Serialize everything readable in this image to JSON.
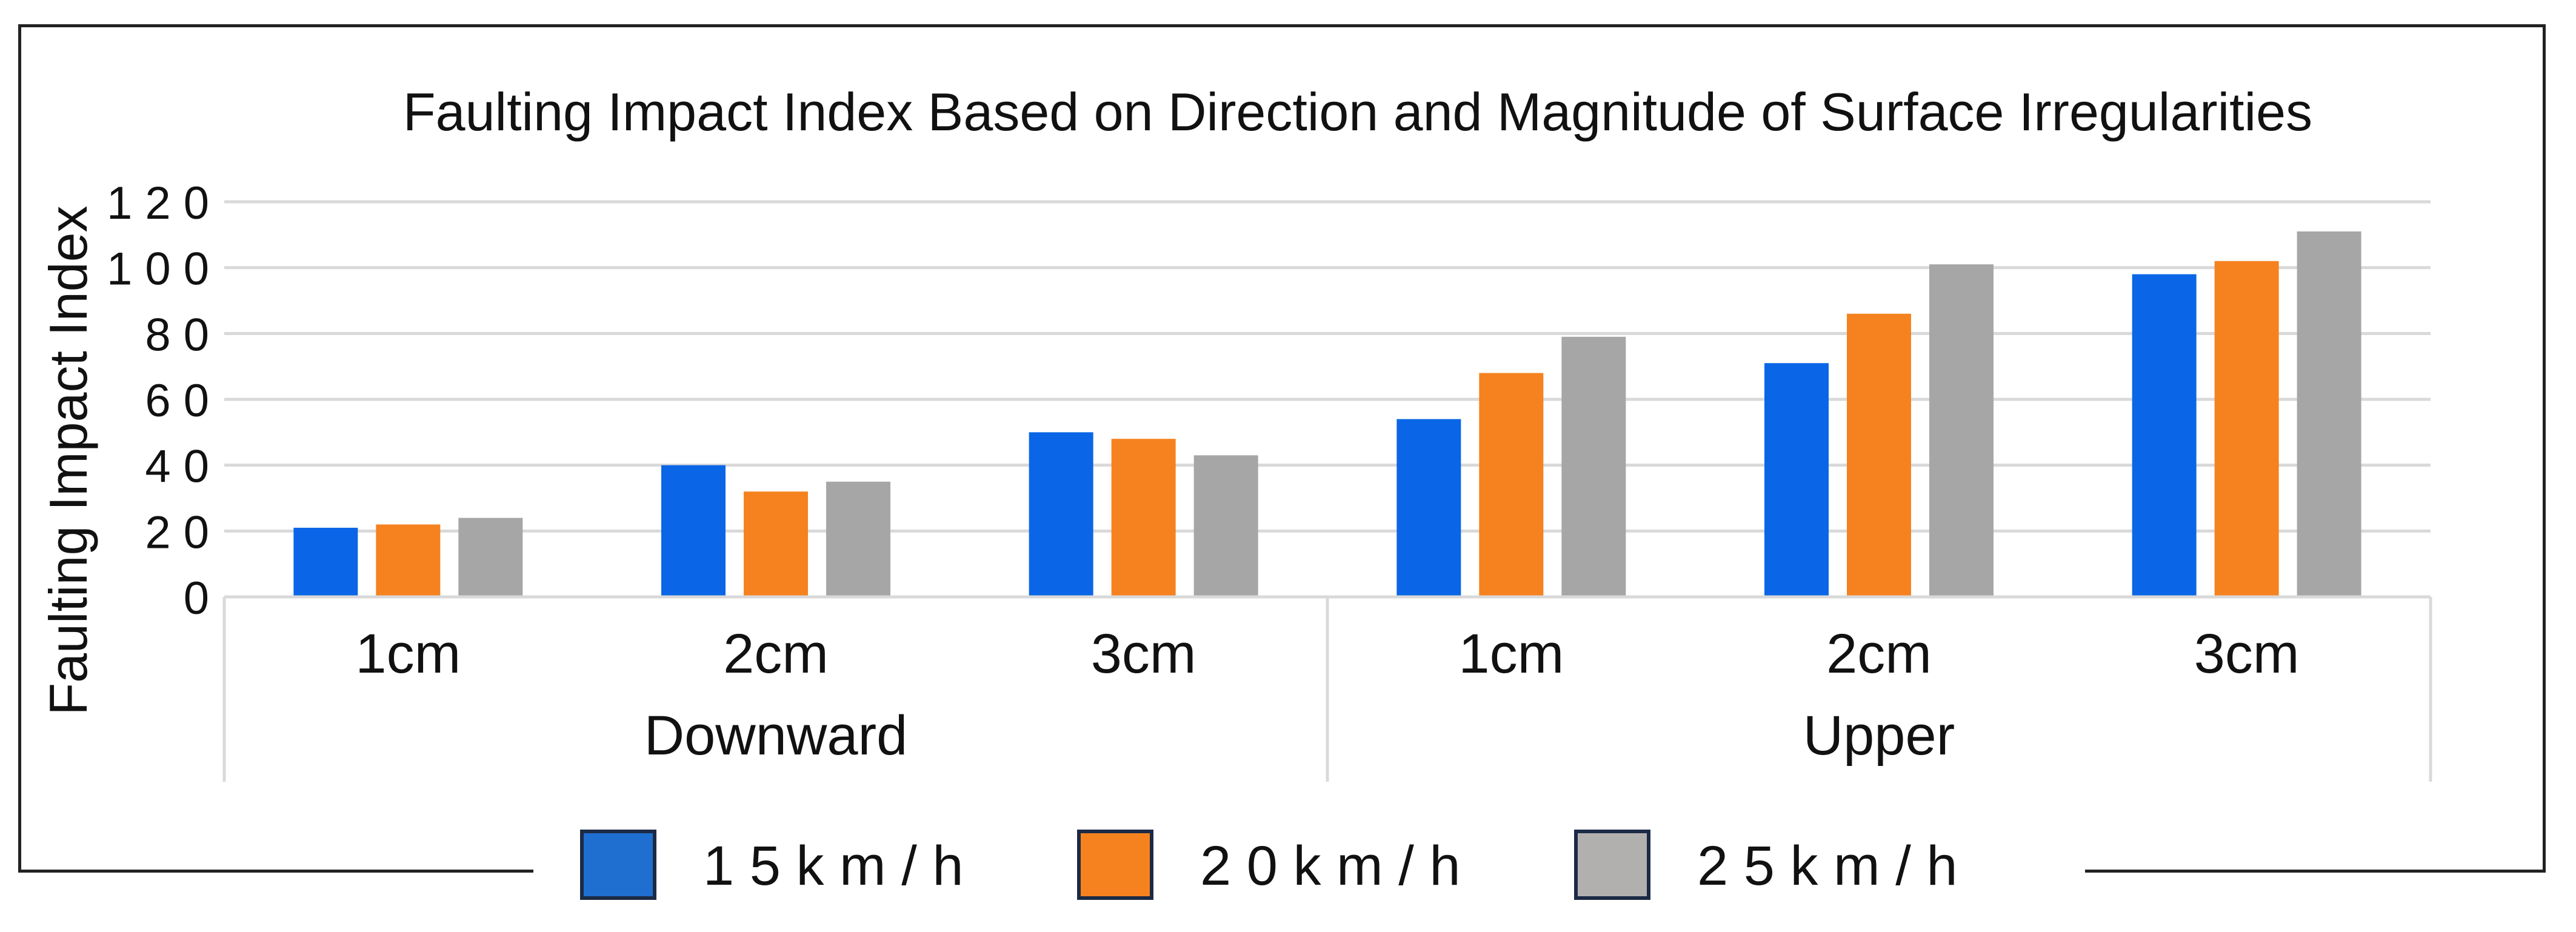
{
  "chart_data": {
    "type": "bar",
    "title": "Faulting Impact Index Based on Direction and Magnitude of Surface Irregularities",
    "ylabel": "Faulting Impact Index",
    "xlabel": "",
    "ylim": [
      0,
      120
    ],
    "yticks": [
      "0",
      "2 0",
      "4 0",
      "6 0",
      "8 0",
      "1 0 0",
      "1 2 0"
    ],
    "ytick_values": [
      0,
      20,
      40,
      60,
      80,
      100,
      120
    ],
    "grid": true,
    "legend_position": "bottom",
    "groups": [
      {
        "label": "Downward",
        "categories": [
          "1cm",
          "2cm",
          "3cm"
        ]
      },
      {
        "label": "Upper",
        "categories": [
          "1cm",
          "2cm",
          "3cm"
        ]
      }
    ],
    "categories": [
      "1cm",
      "2cm",
      "3cm",
      "1cm",
      "2cm",
      "3cm"
    ],
    "series": [
      {
        "name": "1 5 k m / h",
        "color": "#0a66e6",
        "legend_color": "#1f6fd0",
        "values": [
          21,
          40,
          50,
          54,
          71,
          98
        ]
      },
      {
        "name": "2 0 k m / h",
        "color": "#f5821f",
        "legend_color": "#f5821f",
        "values": [
          22,
          32,
          48,
          68,
          86,
          102
        ]
      },
      {
        "name": "2 5 k m / h",
        "color": "#a6a6a6",
        "legend_color": "#b2b0ae",
        "values": [
          24,
          35,
          43,
          79,
          101,
          111
        ]
      }
    ]
  }
}
